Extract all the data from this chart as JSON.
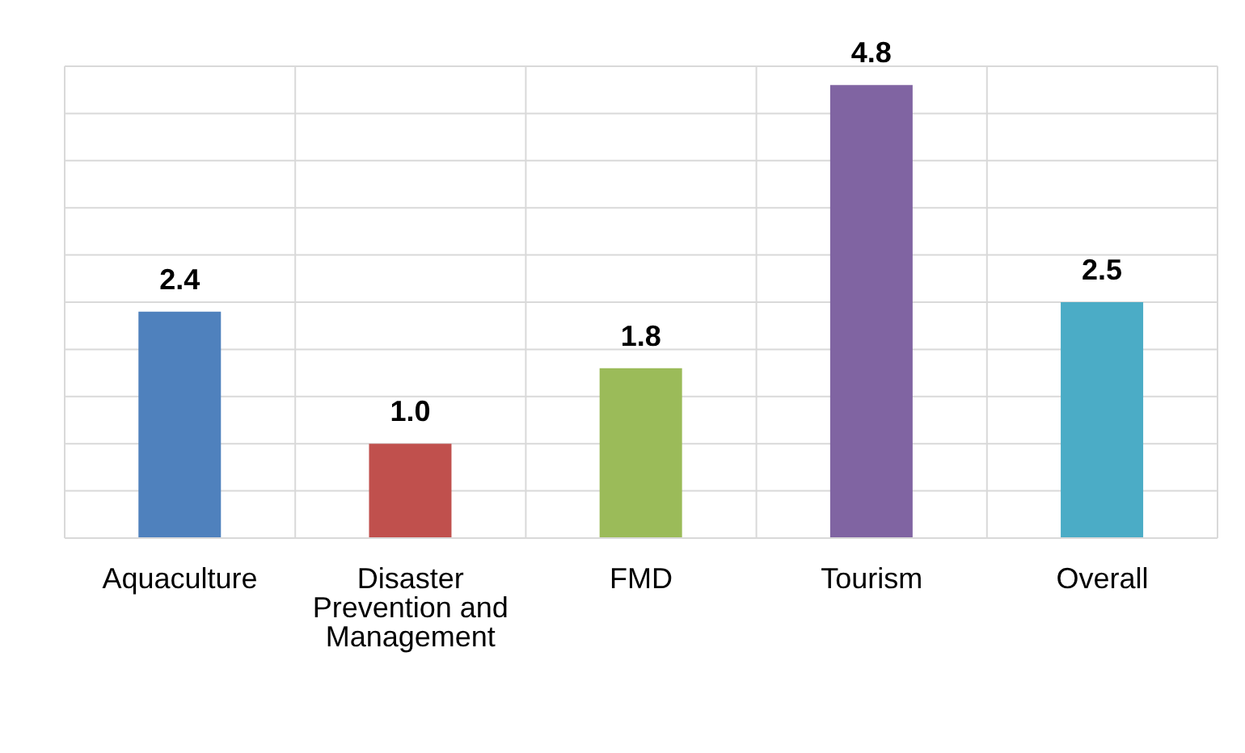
{
  "chart_data": {
    "type": "bar",
    "categories": [
      "Aquaculture",
      "Disaster Prevention and Management",
      "FMD",
      "Tourism",
      "Overall"
    ],
    "values": [
      2.4,
      1.0,
      1.8,
      4.8,
      2.5
    ],
    "colors": [
      "#4f81bd",
      "#c0504d",
      "#9bbb59",
      "#8064a2",
      "#4bacc6"
    ],
    "value_labels": [
      "2.4",
      "1.0",
      "1.8",
      "4.8",
      "2.5"
    ],
    "ylim": [
      0,
      5
    ],
    "tick_labels": "x",
    "grid": true
  }
}
